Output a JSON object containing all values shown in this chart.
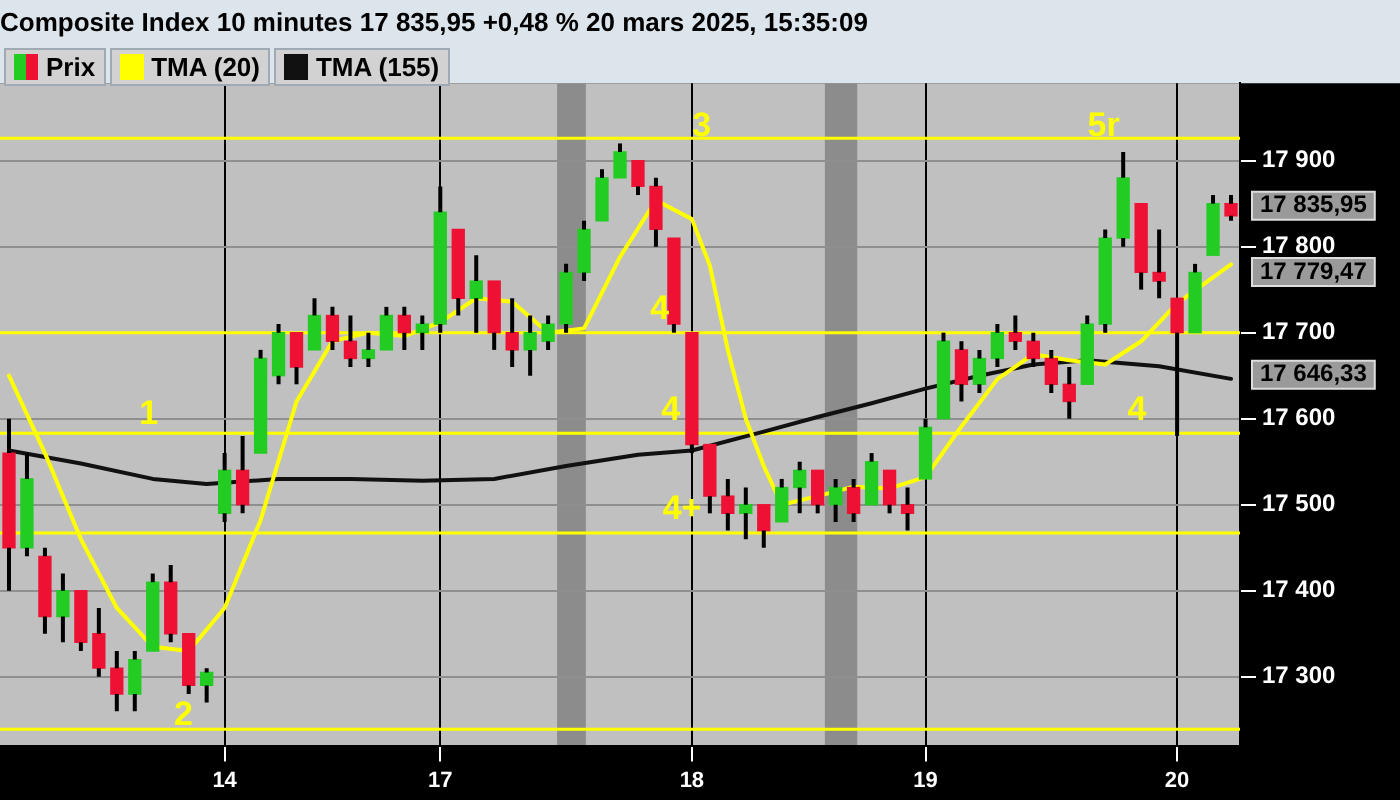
{
  "chart_data": {
    "type": "candlestick",
    "title": "Composite Index 10 minutes 17 835,95 +0,48 % 20 mars 2025, 15:35:09",
    "categories": [
      null,
      null,
      null,
      null,
      null,
      null,
      null,
      null,
      null,
      null,
      null,
      null,
      "14",
      null,
      null,
      null,
      null,
      null,
      null,
      null,
      null,
      null,
      null,
      null,
      "17",
      null,
      null,
      null,
      null,
      null,
      null,
      null,
      null,
      null,
      null,
      null,
      null,
      null,
      "18",
      null,
      null,
      null,
      null,
      null,
      null,
      null,
      null,
      null,
      null,
      null,
      null,
      "19",
      null,
      null,
      null,
      null,
      null,
      null,
      null,
      null,
      null,
      null,
      null,
      null,
      null,
      "20",
      null,
      null,
      null
    ],
    "ylim": [
      17220,
      17990
    ],
    "yticks": [
      {
        "value": 17300,
        "label": "17 300"
      },
      {
        "value": 17400,
        "label": "17 400"
      },
      {
        "value": 17500,
        "label": "17 500"
      },
      {
        "value": 17600,
        "label": "17 600"
      },
      {
        "value": 17700,
        "label": "17 700"
      },
      {
        "value": 17800,
        "label": "17 800"
      },
      {
        "value": 17900,
        "label": "17 900"
      }
    ],
    "grid": true,
    "legend": "top left",
    "series": [
      {
        "name": "Prix",
        "ohlc": [
          [
            17560,
            17600,
            17400,
            17450
          ],
          [
            17450,
            17560,
            17440,
            17530
          ],
          [
            17440,
            17450,
            17350,
            17370
          ],
          [
            17370,
            17420,
            17340,
            17400
          ],
          [
            17400,
            17400,
            17330,
            17340
          ],
          [
            17350,
            17380,
            17300,
            17310
          ],
          [
            17310,
            17330,
            17260,
            17280
          ],
          [
            17280,
            17330,
            17260,
            17320
          ],
          [
            17330,
            17420,
            17330,
            17410
          ],
          [
            17410,
            17430,
            17340,
            17350
          ],
          [
            17350,
            17350,
            17280,
            17290
          ],
          [
            17290,
            17310,
            17270,
            17305
          ],
          [
            17490,
            17560,
            17480,
            17540
          ],
          [
            17540,
            17580,
            17490,
            17500
          ],
          [
            17560,
            17680,
            17560,
            17670
          ],
          [
            17650,
            17710,
            17640,
            17700
          ],
          [
            17700,
            17700,
            17640,
            17660
          ],
          [
            17680,
            17740,
            17680,
            17720
          ],
          [
            17720,
            17730,
            17680,
            17690
          ],
          [
            17690,
            17720,
            17660,
            17670
          ],
          [
            17670,
            17700,
            17660,
            17680
          ],
          [
            17680,
            17730,
            17680,
            17720
          ],
          [
            17720,
            17730,
            17680,
            17700
          ],
          [
            17700,
            17720,
            17680,
            17710
          ],
          [
            17710,
            17870,
            17700,
            17840
          ],
          [
            17820,
            17820,
            17720,
            17740
          ],
          [
            17740,
            17790,
            17700,
            17760
          ],
          [
            17760,
            17760,
            17680,
            17700
          ],
          [
            17700,
            17740,
            17660,
            17680
          ],
          [
            17680,
            17720,
            17650,
            17700
          ],
          [
            17690,
            17720,
            17680,
            17710
          ],
          [
            17710,
            17780,
            17700,
            17770
          ],
          [
            17770,
            17830,
            17760,
            17820
          ],
          [
            17830,
            17890,
            17830,
            17880
          ],
          [
            17880,
            17920,
            17880,
            17910
          ],
          [
            17900,
            17900,
            17860,
            17870
          ],
          [
            17870,
            17880,
            17800,
            17820
          ],
          [
            17810,
            17810,
            17700,
            17710
          ],
          [
            17700,
            17700,
            17560,
            17570
          ],
          [
            17570,
            17570,
            17490,
            17510
          ],
          [
            17510,
            17530,
            17470,
            17490
          ],
          [
            17490,
            17520,
            17460,
            17500
          ],
          [
            17500,
            17500,
            17450,
            17470
          ],
          [
            17480,
            17530,
            17480,
            17520
          ],
          [
            17520,
            17550,
            17490,
            17540
          ],
          [
            17540,
            17540,
            17490,
            17500
          ],
          [
            17500,
            17530,
            17480,
            17520
          ],
          [
            17520,
            17530,
            17480,
            17490
          ],
          [
            17500,
            17560,
            17500,
            17550
          ],
          [
            17540,
            17540,
            17490,
            17500
          ],
          [
            17500,
            17520,
            17470,
            17490
          ],
          [
            17530,
            17600,
            17530,
            17590
          ],
          [
            17600,
            17700,
            17600,
            17690
          ],
          [
            17680,
            17690,
            17620,
            17640
          ],
          [
            17640,
            17680,
            17630,
            17670
          ],
          [
            17670,
            17710,
            17660,
            17700
          ],
          [
            17700,
            17720,
            17680,
            17690
          ],
          [
            17690,
            17700,
            17660,
            17670
          ],
          [
            17670,
            17680,
            17630,
            17640
          ],
          [
            17640,
            17660,
            17600,
            17620
          ],
          [
            17640,
            17720,
            17640,
            17710
          ],
          [
            17710,
            17820,
            17700,
            17810
          ],
          [
            17810,
            17910,
            17800,
            17880
          ],
          [
            17850,
            17850,
            17750,
            17770
          ],
          [
            17770,
            17820,
            17740,
            17760
          ],
          [
            17740,
            17740,
            17580,
            17700
          ],
          [
            17700,
            17780,
            17700,
            17770
          ],
          [
            17790,
            17860,
            17790,
            17850
          ],
          [
            17850,
            17860,
            17830,
            17835.95
          ]
        ],
        "colors": [
          "#ee1133",
          "#22cc22",
          "#ee1133",
          "#22cc22",
          "#ee1133",
          "#ee1133",
          "#ee1133",
          "#22cc22",
          "#22cc22",
          "#ee1133",
          "#ee1133",
          "#22cc22",
          "#22cc22",
          "#ee1133",
          "#22cc22",
          "#22cc22",
          "#ee1133",
          "#22cc22",
          "#ee1133",
          "#ee1133",
          "#22cc22",
          "#22cc22",
          "#ee1133",
          "#22cc22",
          "#22cc22",
          "#ee1133",
          "#22cc22",
          "#ee1133",
          "#ee1133",
          "#22cc22",
          "#22cc22",
          "#22cc22",
          "#22cc22",
          "#22cc22",
          "#22cc22",
          "#ee1133",
          "#ee1133",
          "#ee1133",
          "#ee1133",
          "#ee1133",
          "#ee1133",
          "#22cc22",
          "#ee1133",
          "#22cc22",
          "#22cc22",
          "#ee1133",
          "#22cc22",
          "#ee1133",
          "#22cc22",
          "#ee1133",
          "#ee1133",
          "#22cc22",
          "#22cc22",
          "#ee1133",
          "#22cc22",
          "#22cc22",
          "#ee1133",
          "#ee1133",
          "#ee1133",
          "#ee1133",
          "#22cc22",
          "#22cc22",
          "#22cc22",
          "#ee1133",
          "#ee1133",
          "#ee1133",
          "#22cc22",
          "#22cc22",
          "#ee1133"
        ]
      },
      {
        "name": "TMA (20)",
        "type": "line",
        "color": "#ffff00",
        "values": [
          17650,
          null,
          17560,
          null,
          17460,
          null,
          17380,
          null,
          17335,
          null,
          17330,
          null,
          17380,
          null,
          17482,
          null,
          17620,
          null,
          17690,
          null,
          17700,
          null,
          17696,
          null,
          17712,
          null,
          17740,
          null,
          17736,
          null,
          17700,
          null,
          17705,
          null,
          17788,
          null,
          17854,
          null,
          17832,
          17778,
          17680,
          17600,
          17545,
          17500,
          null,
          17510,
          null,
          17521,
          null,
          17519,
          null,
          17532,
          null,
          17591,
          null,
          17646,
          null,
          17675,
          null,
          17668,
          null,
          17663,
          null,
          17690,
          null,
          17734,
          null,
          null,
          17779.47
        ]
      },
      {
        "name": "TMA (155)",
        "type": "line",
        "color": "#111111",
        "values": [
          17563,
          null,
          null,
          null,
          17548,
          null,
          null,
          null,
          17530,
          null,
          null,
          17524,
          null,
          null,
          null,
          17530,
          null,
          null,
          null,
          17530,
          null,
          null,
          null,
          17528,
          null,
          null,
          null,
          17530,
          null,
          null,
          null,
          17545,
          null,
          null,
          null,
          17558,
          null,
          null,
          17563,
          null,
          null,
          null,
          17585,
          null,
          null,
          17602,
          null,
          null,
          17618,
          null,
          null,
          17635,
          null,
          null,
          17650,
          null,
          null,
          17663,
          null,
          null,
          17668,
          null,
          null,
          null,
          17661,
          null,
          null,
          null,
          17646.33
        ]
      }
    ],
    "ref_lines": [
      {
        "axis": "y",
        "value": 17926,
        "color": "#ffff00"
      },
      {
        "axis": "y",
        "value": 17700,
        "color": "#ffff00"
      },
      {
        "axis": "y",
        "value": 17583,
        "color": "#ffff00"
      },
      {
        "axis": "y",
        "value": 17467,
        "color": "#ffff00"
      },
      {
        "axis": "y",
        "value": 17239,
        "color": "#ffff00"
      }
    ],
    "annotations": [
      "1",
      "2",
      "3",
      {
        "text": "4",
        "y": 17700
      },
      {
        "text": "4",
        "y": 17583
      },
      {
        "text": "4+",
        "y": 17467
      },
      {
        "text": "4",
        "y": 17583
      },
      "5r",
      "17 835,95",
      "17 779,47",
      "17 646,33"
    ]
  }
}
